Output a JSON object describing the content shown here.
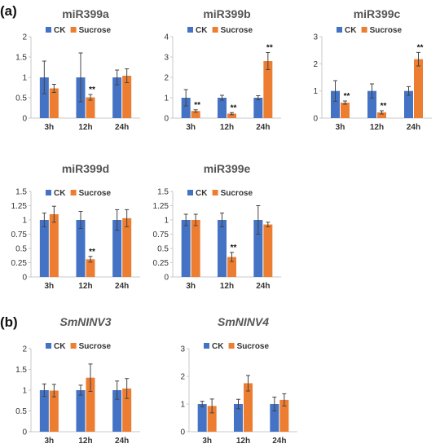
{
  "panels": {
    "a": "(a)",
    "b": "(b)"
  },
  "colors": {
    "ck": "#4472C4",
    "sucrose": "#ED7D31",
    "error": "#444444",
    "axis": "#c8c8c8"
  },
  "chart_data": [
    {
      "type": "bar",
      "title": "miR399a",
      "italic": false,
      "categories": [
        "3h",
        "12h",
        "24h"
      ],
      "series": [
        {
          "name": "CK",
          "values": [
            1.0,
            1.0,
            1.0
          ],
          "errors": [
            0.4,
            0.6,
            0.18
          ]
        },
        {
          "name": "Sucrose",
          "values": [
            0.73,
            0.51,
            1.04
          ],
          "errors": [
            0.1,
            0.07,
            0.17
          ]
        }
      ],
      "annotations": [
        {
          "series": 1,
          "category": 1,
          "text": "**"
        }
      ],
      "ylim": [
        0,
        2
      ],
      "yticks": [
        0,
        0.5,
        1,
        1.5,
        2
      ],
      "ytick_labels": [
        "0",
        "0.5",
        "1",
        "1.5",
        "2"
      ],
      "legend": "top",
      "grid": false
    },
    {
      "type": "bar",
      "title": "miR399b",
      "italic": false,
      "categories": [
        "3h",
        "12h",
        "24h"
      ],
      "series": [
        {
          "name": "CK",
          "values": [
            1.0,
            1.0,
            1.0
          ],
          "errors": [
            0.4,
            0.12,
            0.1
          ]
        },
        {
          "name": "Sucrose",
          "values": [
            0.35,
            0.22,
            2.8
          ],
          "errors": [
            0.06,
            0.05,
            0.42
          ]
        }
      ],
      "annotations": [
        {
          "series": 1,
          "category": 0,
          "text": "**"
        },
        {
          "series": 1,
          "category": 1,
          "text": "**"
        },
        {
          "series": 1,
          "category": 2,
          "text": "**"
        }
      ],
      "ylim": [
        0,
        4
      ],
      "yticks": [
        0,
        1,
        2,
        3,
        4
      ],
      "ytick_labels": [
        "0",
        "1",
        "2",
        "3",
        "4"
      ],
      "legend": "top",
      "grid": false
    },
    {
      "type": "bar",
      "title": "miR399c",
      "italic": false,
      "categories": [
        "3h",
        "12h",
        "24h"
      ],
      "series": [
        {
          "name": "CK",
          "values": [
            1.0,
            1.0,
            1.0
          ],
          "errors": [
            0.38,
            0.26,
            0.16
          ]
        },
        {
          "name": "Sucrose",
          "values": [
            0.57,
            0.21,
            2.17
          ],
          "errors": [
            0.06,
            0.06,
            0.25
          ]
        }
      ],
      "annotations": [
        {
          "series": 1,
          "category": 0,
          "text": "**"
        },
        {
          "series": 1,
          "category": 1,
          "text": "**"
        },
        {
          "series": 1,
          "category": 2,
          "text": "**"
        }
      ],
      "ylim": [
        0,
        3
      ],
      "yticks": [
        0,
        1,
        2,
        3
      ],
      "ytick_labels": [
        "0",
        "1",
        "2",
        "3"
      ],
      "legend": "top",
      "grid": false
    },
    {
      "type": "bar",
      "title": "miR399d",
      "italic": false,
      "categories": [
        "3h",
        "12h",
        "24h"
      ],
      "series": [
        {
          "name": "CK",
          "values": [
            1.0,
            1.0,
            1.0
          ],
          "errors": [
            0.12,
            0.15,
            0.18
          ]
        },
        {
          "name": "Sucrose",
          "values": [
            1.1,
            0.31,
            1.03
          ],
          "errors": [
            0.14,
            0.05,
            0.15
          ]
        }
      ],
      "annotations": [
        {
          "series": 1,
          "category": 1,
          "text": "**"
        }
      ],
      "ylim": [
        0,
        1.5
      ],
      "yticks": [
        0,
        0.25,
        0.5,
        0.75,
        1,
        1.25,
        1.5
      ],
      "ytick_labels": [
        "0",
        "0.25",
        "0.5",
        "0.75",
        "1",
        "1.25",
        "1.5"
      ],
      "legend": "top",
      "grid": false
    },
    {
      "type": "bar",
      "title": "miR399e",
      "italic": false,
      "categories": [
        "3h",
        "12h",
        "24h"
      ],
      "series": [
        {
          "name": "CK",
          "values": [
            1.0,
            1.0,
            1.0
          ],
          "errors": [
            0.1,
            0.12,
            0.25
          ]
        },
        {
          "name": "Sucrose",
          "values": [
            1.0,
            0.35,
            0.92
          ],
          "errors": [
            0.1,
            0.08,
            0.04
          ]
        }
      ],
      "annotations": [
        {
          "series": 1,
          "category": 1,
          "text": "**"
        }
      ],
      "ylim": [
        0,
        1.5
      ],
      "yticks": [
        0,
        0.25,
        0.5,
        0.75,
        1,
        1.25,
        1.5
      ],
      "ytick_labels": [
        "0",
        "0.25",
        "0.5",
        "0.75",
        "1",
        "1.25",
        "1.5"
      ],
      "legend": "top",
      "grid": false
    },
    {
      "type": "bar",
      "title": "SmNINV3",
      "italic": true,
      "categories": [
        "3h",
        "12h",
        "24h"
      ],
      "series": [
        {
          "name": "CK",
          "values": [
            1.0,
            1.0,
            1.0
          ],
          "errors": [
            0.15,
            0.12,
            0.22
          ]
        },
        {
          "name": "Sucrose",
          "values": [
            0.99,
            1.3,
            1.04
          ],
          "errors": [
            0.15,
            0.33,
            0.24
          ]
        }
      ],
      "annotations": [],
      "ylim": [
        0,
        2
      ],
      "yticks": [
        0,
        0.5,
        1,
        1.5,
        2
      ],
      "ytick_labels": [
        "0",
        "0.5",
        "1",
        "1.5",
        "2"
      ],
      "legend": "top",
      "grid": false
    },
    {
      "type": "bar",
      "title": "SmNINV4",
      "italic": true,
      "categories": [
        "3h",
        "12h",
        "24h"
      ],
      "series": [
        {
          "name": "CK",
          "values": [
            1.0,
            1.0,
            1.0
          ],
          "errors": [
            0.1,
            0.17,
            0.25
          ]
        },
        {
          "name": "Sucrose",
          "values": [
            0.93,
            1.75,
            1.15
          ],
          "errors": [
            0.25,
            0.28,
            0.22
          ]
        }
      ],
      "annotations": [],
      "ylim": [
        0,
        3
      ],
      "yticks": [
        0,
        1,
        2,
        3
      ],
      "ytick_labels": [
        "0",
        "1",
        "2",
        "3"
      ],
      "legend": "top",
      "grid": false
    }
  ]
}
